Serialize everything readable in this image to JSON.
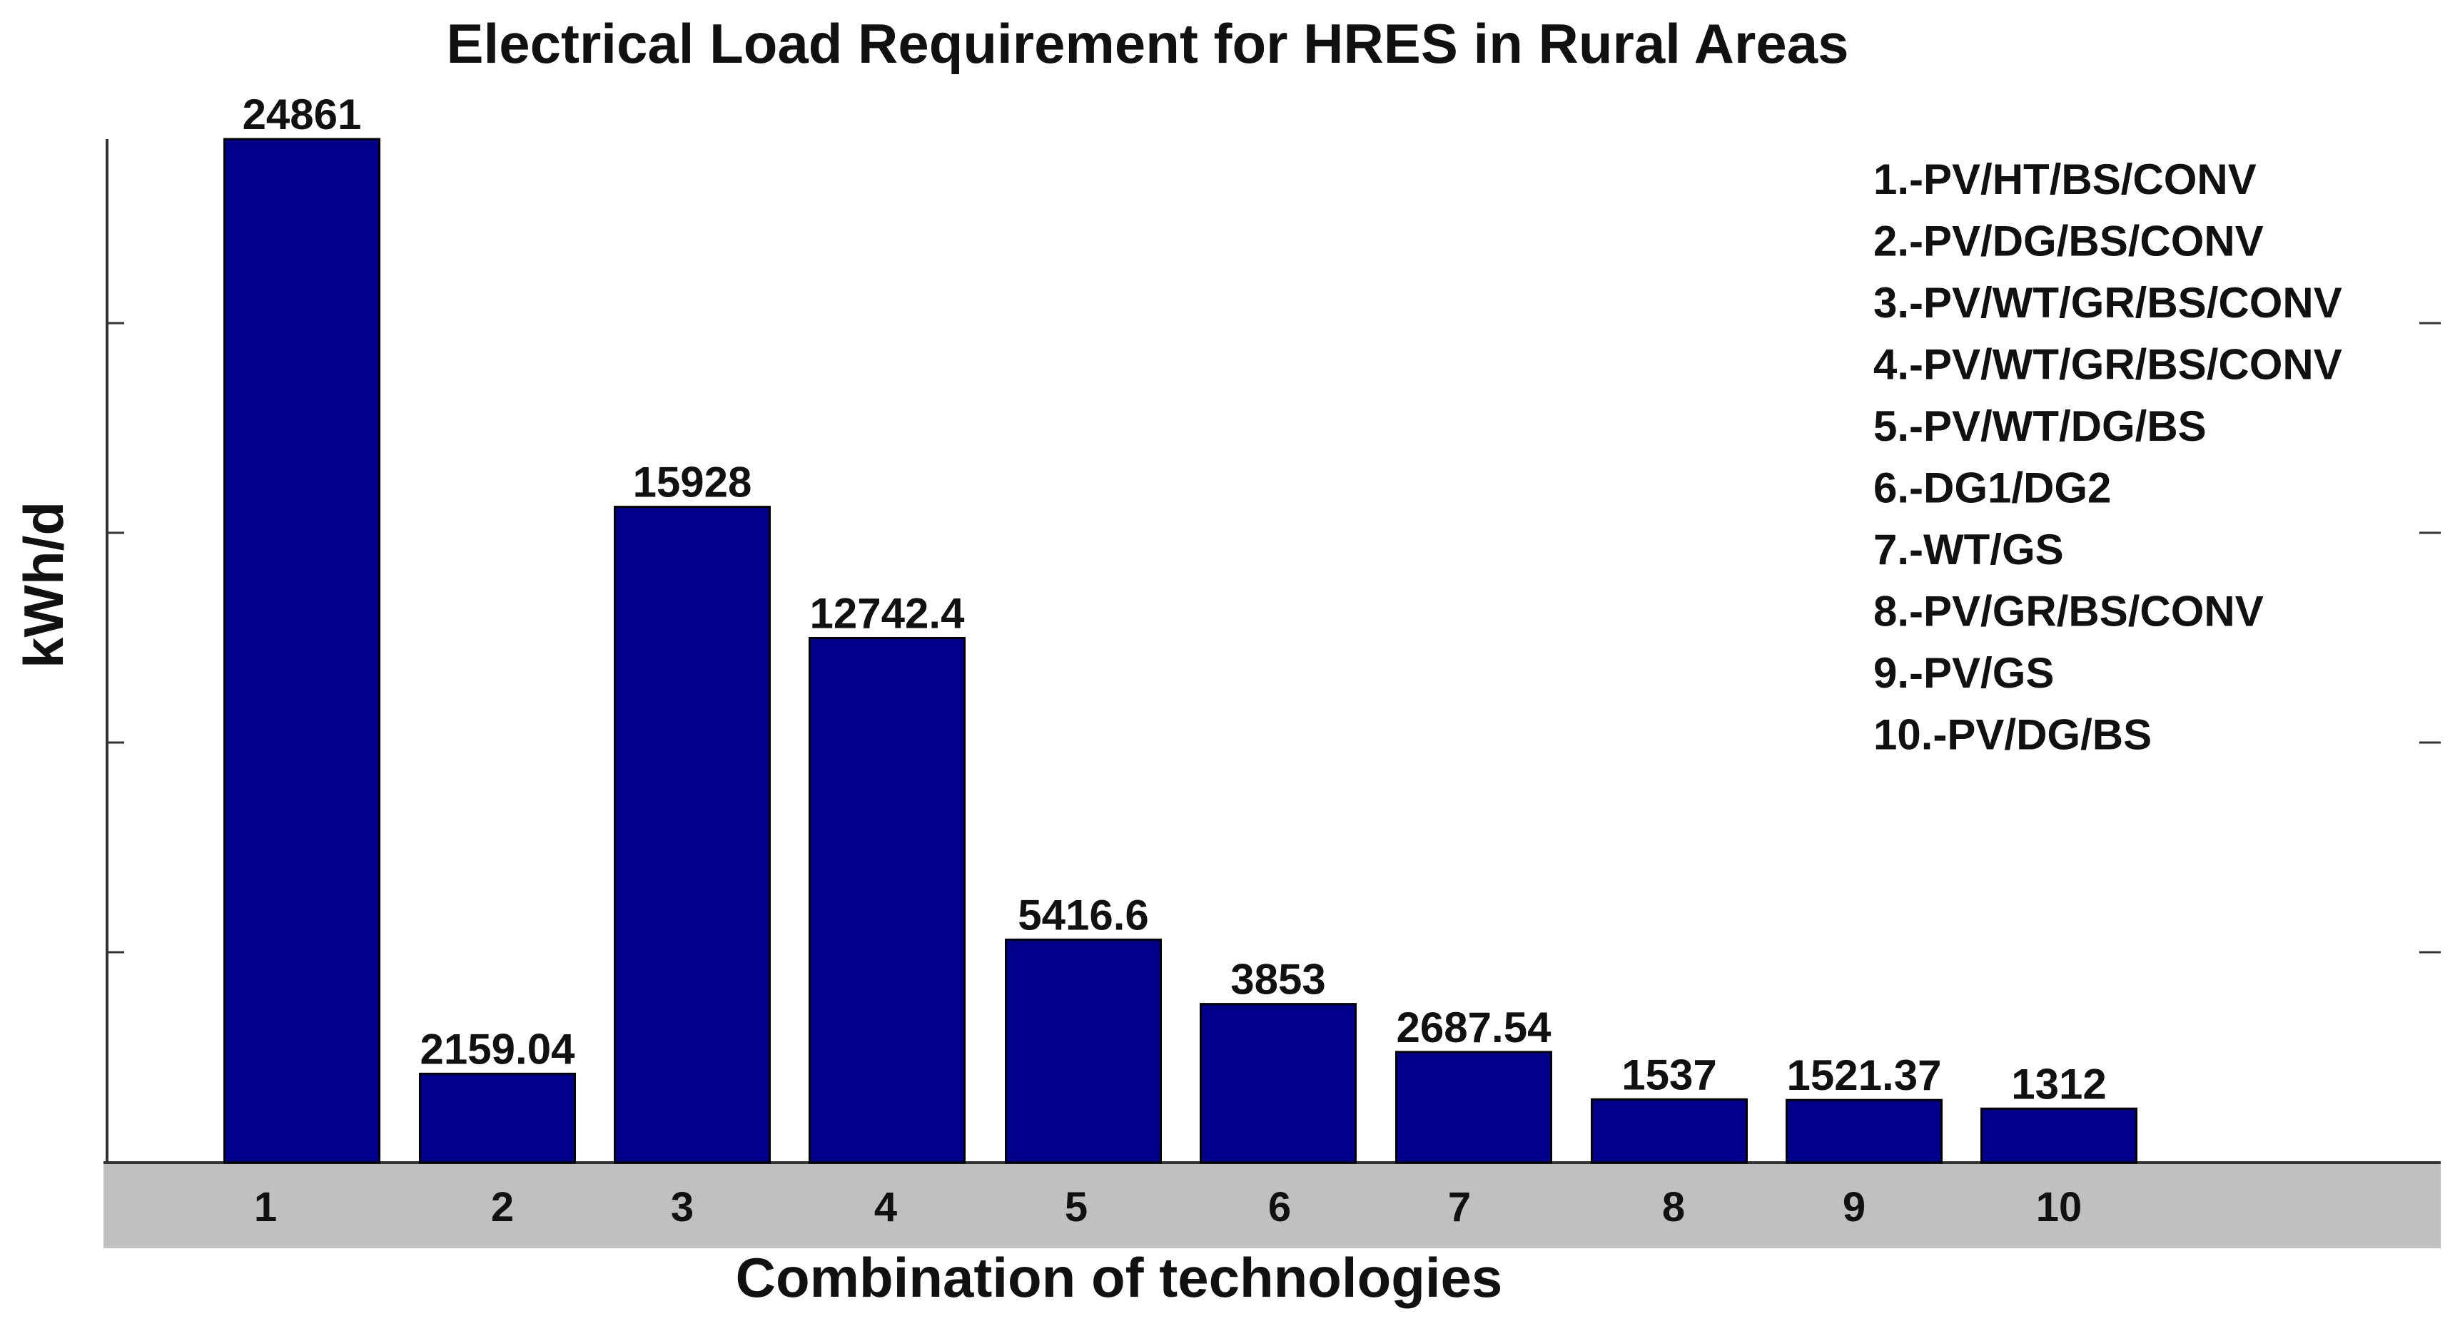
{
  "chart_data": {
    "type": "bar",
    "title": "Electrical Load Requirement for HRES in Rural Areas",
    "xlabel": "Combination of technologies",
    "ylabel": "kWh/d",
    "categories": [
      "1",
      "2",
      "3",
      "4",
      "5",
      "6",
      "7",
      "8",
      "9",
      "10"
    ],
    "values": [
      24861,
      2159.04,
      15928,
      12742.4,
      5416.6,
      3853,
      2687.54,
      1537,
      1521.37,
      1312
    ],
    "value_labels": [
      "24861",
      "2159.04",
      "15928",
      "12742.4",
      "5416.6",
      "3853",
      "2687.54",
      "1537",
      "1521.37",
      "1312"
    ],
    "bar_color": "#00008B",
    "tick_band_color": "#C0C0C0",
    "grid": false,
    "legend_placement": "top-right",
    "legend_items": [
      "1.-PV/HT/BS/CONV",
      "2.-PV/DG/BS/CONV",
      "3.-PV/WT/GR/BS/CONV",
      "4.-PV/WT/GR/BS/CONV",
      "5.-PV/WT/DG/BS",
      "6.-DG1/DG2",
      "7.-WT/GS",
      "8.-PV/GR/BS/CONV",
      "9.-PV/GS",
      "10.-PV/DG/BS"
    ]
  }
}
